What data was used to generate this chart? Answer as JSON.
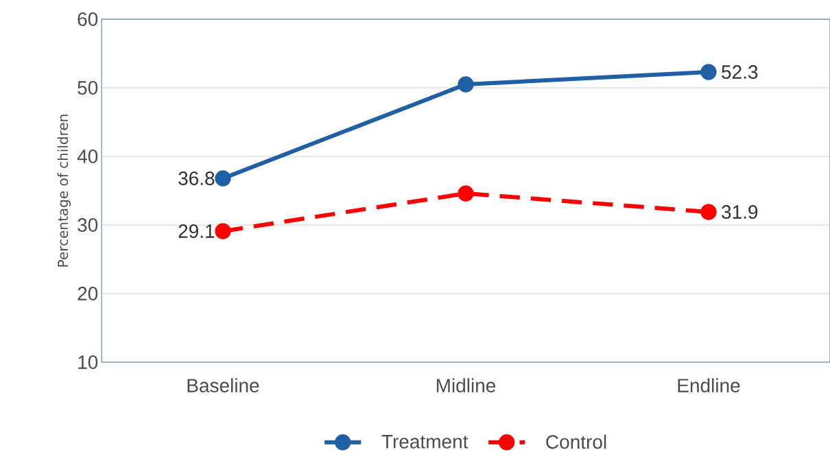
{
  "chart_data": {
    "type": "line",
    "ylabel": "Percentage of children",
    "categories": [
      "Baseline",
      "Midline",
      "Endline"
    ],
    "series": [
      {
        "name": "Treatment",
        "color": "#1f5fa6",
        "values": [
          36.8,
          50.5,
          52.3
        ],
        "value_labels": [
          "36.8",
          null,
          "52.3"
        ],
        "line_style": "solid"
      },
      {
        "name": "Control",
        "color": "#ff0000",
        "values": [
          29.1,
          34.6,
          31.9
        ],
        "value_labels": [
          "29.1",
          null,
          "31.9"
        ],
        "line_style": "dashed"
      }
    ],
    "ylim": [
      10,
      60
    ],
    "yticks": [
      10,
      20,
      30,
      40,
      50,
      60
    ],
    "grid": "y",
    "legend": "bottom",
    "marker": "circle"
  }
}
